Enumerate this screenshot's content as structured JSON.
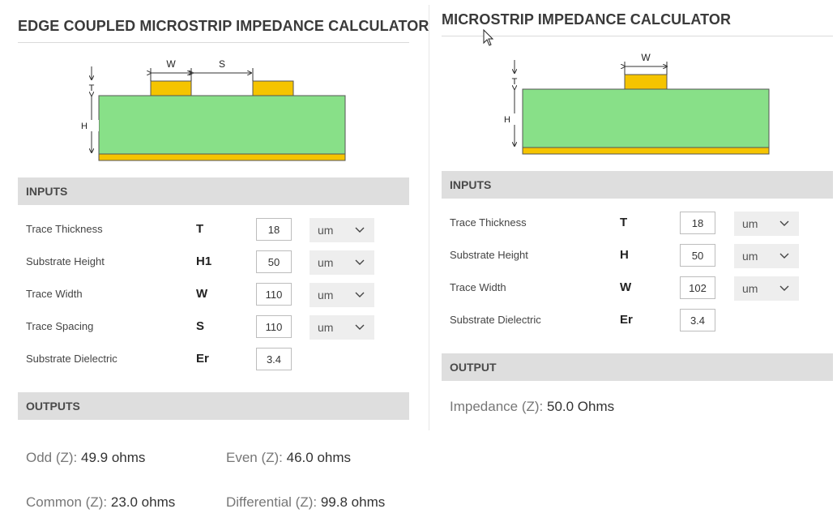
{
  "left": {
    "title": "EDGE COUPLED MICROSTRIP IMPEDANCE CALCULATOR",
    "diagram": {
      "w": "W",
      "s": "S",
      "t": "T",
      "h": "H"
    },
    "inputs_header": "INPUTS",
    "rows": [
      {
        "label": "Trace Thickness",
        "sym": "T",
        "value": "18",
        "unit": "um"
      },
      {
        "label": "Substrate Height",
        "sym": "H1",
        "value": "50",
        "unit": "um"
      },
      {
        "label": "Trace Width",
        "sym": "W",
        "value": "110",
        "unit": "um"
      },
      {
        "label": "Trace Spacing",
        "sym": "S",
        "value": "110",
        "unit": "um"
      },
      {
        "label": "Substrate Dielectric",
        "sym": "Er",
        "value": "3.4"
      }
    ],
    "outputs_header": "OUTPUTS",
    "outputs": [
      {
        "label": "Odd (Z):",
        "value": "49.9 ohms"
      },
      {
        "label": "Even (Z):",
        "value": "46.0 ohms"
      },
      {
        "label": "Common (Z):",
        "value": "23.0 ohms"
      },
      {
        "label": "Differential (Z):",
        "value": "99.8 ohms"
      }
    ]
  },
  "right": {
    "title": "MICROSTRIP IMPEDANCE CALCULATOR",
    "diagram": {
      "w": "W",
      "t": "T",
      "h": "H"
    },
    "inputs_header": "INPUTS",
    "rows": [
      {
        "label": "Trace Thickness",
        "sym": "T",
        "value": "18",
        "unit": "um"
      },
      {
        "label": "Substrate Height",
        "sym": "H",
        "value": "50",
        "unit": "um"
      },
      {
        "label": "Trace Width",
        "sym": "W",
        "value": "102",
        "unit": "um"
      },
      {
        "label": "Substrate Dielectric",
        "sym": "Er",
        "value": "3.4"
      }
    ],
    "output_header": "OUTPUT",
    "output": {
      "label": "Impedance (Z):",
      "value": "50.0 Ohms"
    }
  },
  "colors": {
    "substrate": "#88e088",
    "copper": "#f5c400",
    "section_bar": "#dedede"
  },
  "icons": {
    "dropdown": "chevron-down-icon",
    "cursor": "mouse-pointer-icon"
  }
}
